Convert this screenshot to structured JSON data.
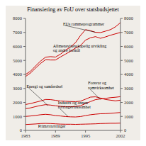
{
  "chart_data": {
    "type": "line",
    "title": "Finansiering av FoU over statsbudsjettet",
    "x": [
      1983,
      1984,
      1985,
      1986,
      1987,
      1988,
      1989,
      1990,
      1991,
      1992,
      1993,
      1994,
      1995,
      1996,
      1997,
      1998,
      1999,
      2000,
      2001,
      2002
    ],
    "series": [
      {
        "name": "Primærnæringer",
        "values": [
          420,
          440,
          460,
          490,
          500,
          490,
          470,
          450,
          440,
          440,
          430,
          440,
          450,
          460,
          470,
          490,
          500,
          510,
          510,
          520
        ]
      },
      {
        "name": "Industri og annen næringsvirksomhet",
        "values": [
          1000,
          1030,
          1070,
          1120,
          1150,
          1120,
          1060,
          1030,
          990,
          970,
          960,
          990,
          1060,
          1120,
          1160,
          1190,
          1200,
          1220,
          1250,
          1280
        ]
      },
      {
        "name": "Energi og samferdsel",
        "values": [
          1550,
          1610,
          1700,
          1780,
          1840,
          1810,
          1760,
          1720,
          1690,
          1690,
          1710,
          1760,
          1920,
          2060,
          2200,
          2250,
          2290,
          2340,
          2370,
          2410
        ]
      },
      {
        "name": "Forsvar og romvirksomhet",
        "values": [
          1850,
          1920,
          2010,
          2100,
          2210,
          2200,
          2150,
          2100,
          2080,
          2060,
          2050,
          2090,
          2230,
          2380,
          2400,
          2310,
          2210,
          2160,
          2110,
          2160
        ]
      },
      {
        "name": "Allmensvitenskapelig utvikling og andre formål",
        "values": [
          3850,
          4100,
          4450,
          4780,
          5050,
          5030,
          5030,
          5250,
          5450,
          5650,
          5880,
          6060,
          6450,
          6620,
          6700,
          6580,
          6680,
          6800,
          6900,
          7000
        ]
      },
      {
        "name": "EUs rammeprogrammer",
        "values": [
          4000,
          4230,
          4600,
          4950,
          5230,
          5270,
          5240,
          5450,
          5730,
          5960,
          6270,
          6780,
          7200,
          7120,
          7010,
          6990,
          7090,
          7200,
          7400,
          7700
        ]
      }
    ],
    "color": "#cc0000",
    "xlim": [
      1983,
      2002
    ],
    "xticks": [
      1983,
      1989,
      1995,
      2002
    ],
    "ylim": [
      0,
      8000
    ],
    "yticks": [
      0,
      1000,
      2000,
      3000,
      4000,
      5000,
      6000,
      7000,
      8000
    ],
    "y2lim": [
      0,
      8000
    ],
    "y2ticks": [
      0,
      1000,
      2000,
      3000,
      4000,
      5000,
      6000,
      7000,
      8000
    ],
    "grid": false,
    "annotations": [
      "EUs rammeprogrammer",
      "Allmensvitenskapelig utvikling\nog andre formål",
      "Energi og samferdsel",
      "Forsvar og\nromvirksomhet",
      "Industri og annen\nnæringsvirksomhet",
      "Primærnæringer"
    ]
  }
}
